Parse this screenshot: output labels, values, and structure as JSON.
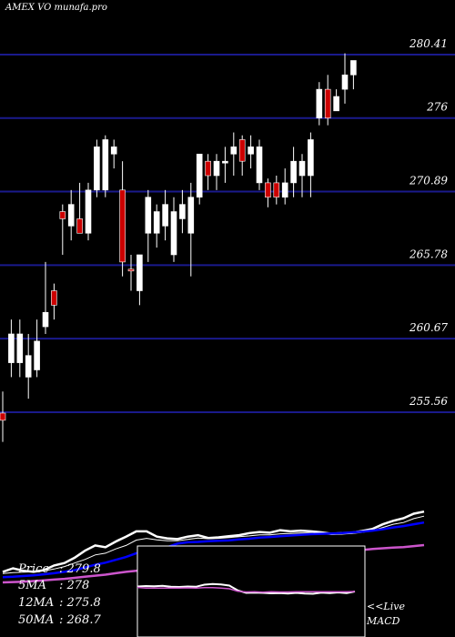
{
  "header": {
    "exchange": "AMEX",
    "symbol": "VO",
    "site": "munafa.pro"
  },
  "chart_data": [
    {
      "type": "candlestick",
      "title": "",
      "y_ticks": [
        280.41,
        276,
        270.89,
        265.78,
        260.67,
        255.56
      ],
      "ylim": [
        253.5,
        282.3
      ],
      "grid": "horizontal",
      "candles": [
        {
          "o": 255.5,
          "h": 257.0,
          "l": 253.5,
          "c": 255.0,
          "color": "red"
        },
        {
          "o": 259.0,
          "h": 262.0,
          "l": 258.0,
          "c": 261.0,
          "color": "white"
        },
        {
          "o": 261.0,
          "h": 262.0,
          "l": 258.0,
          "c": 259.0,
          "color": "white"
        },
        {
          "o": 259.5,
          "h": 261.0,
          "l": 256.5,
          "c": 258.0,
          "color": "white"
        },
        {
          "o": 258.5,
          "h": 262.0,
          "l": 258.0,
          "c": 260.5,
          "color": "white"
        },
        {
          "o": 261.5,
          "h": 266.0,
          "l": 261.0,
          "c": 262.5,
          "color": "white"
        },
        {
          "o": 264.0,
          "h": 264.5,
          "l": 262.0,
          "c": 263.0,
          "color": "red"
        },
        {
          "o": 269.0,
          "h": 270.0,
          "l": 266.5,
          "c": 269.5,
          "color": "red"
        },
        {
          "o": 268.5,
          "h": 271.0,
          "l": 267.5,
          "c": 270.0,
          "color": "white"
        },
        {
          "o": 269.0,
          "h": 271.5,
          "l": 268.0,
          "c": 268.0,
          "color": "red"
        },
        {
          "o": 268.0,
          "h": 271.5,
          "l": 267.5,
          "c": 271.0,
          "color": "white"
        },
        {
          "o": 271.0,
          "h": 274.5,
          "l": 270.5,
          "c": 274.0,
          "color": "white"
        },
        {
          "o": 274.5,
          "h": 274.8,
          "l": 270.5,
          "c": 271.0,
          "color": "white"
        },
        {
          "o": 274.0,
          "h": 274.5,
          "l": 272.5,
          "c": 273.5,
          "color": "white"
        },
        {
          "o": 271.0,
          "h": 273.0,
          "l": 265.0,
          "c": 266.0,
          "color": "red"
        },
        {
          "o": 265.5,
          "h": 266.5,
          "l": 264.0,
          "c": 265.5,
          "color": "red"
        },
        {
          "o": 264.0,
          "h": 266.5,
          "l": 263.0,
          "c": 266.5,
          "color": "white"
        },
        {
          "o": 268.0,
          "h": 271.0,
          "l": 266.0,
          "c": 270.5,
          "color": "white"
        },
        {
          "o": 268.0,
          "h": 270.0,
          "l": 267.0,
          "c": 269.5,
          "color": "white"
        },
        {
          "o": 270.0,
          "h": 271.0,
          "l": 267.5,
          "c": 268.5,
          "color": "white"
        },
        {
          "o": 266.5,
          "h": 270.5,
          "l": 266.0,
          "c": 269.5,
          "color": "white"
        },
        {
          "o": 269.0,
          "h": 271.0,
          "l": 268.0,
          "c": 270.0,
          "color": "white"
        },
        {
          "o": 268.0,
          "h": 271.5,
          "l": 265.0,
          "c": 270.5,
          "color": "white"
        },
        {
          "o": 270.5,
          "h": 273.5,
          "l": 270.0,
          "c": 273.5,
          "color": "white"
        },
        {
          "o": 273.0,
          "h": 273.5,
          "l": 271.0,
          "c": 272.0,
          "color": "red"
        },
        {
          "o": 272.0,
          "h": 273.5,
          "l": 271.0,
          "c": 273.0,
          "color": "white"
        },
        {
          "o": 273.0,
          "h": 274.0,
          "l": 271.5,
          "c": 273.0,
          "color": "white"
        },
        {
          "o": 273.5,
          "h": 275.0,
          "l": 272.0,
          "c": 274.0,
          "color": "white"
        },
        {
          "o": 274.5,
          "h": 274.8,
          "l": 272.0,
          "c": 273.0,
          "color": "red"
        },
        {
          "o": 273.5,
          "h": 274.8,
          "l": 272.5,
          "c": 274.0,
          "color": "white"
        },
        {
          "o": 274.0,
          "h": 274.5,
          "l": 271.0,
          "c": 271.5,
          "color": "white"
        },
        {
          "o": 271.5,
          "h": 271.8,
          "l": 269.8,
          "c": 270.5,
          "color": "red"
        },
        {
          "o": 270.5,
          "h": 272.0,
          "l": 270.0,
          "c": 271.5,
          "color": "red"
        },
        {
          "o": 270.5,
          "h": 272.5,
          "l": 270.0,
          "c": 271.5,
          "color": "white"
        },
        {
          "o": 273.0,
          "h": 274.0,
          "l": 270.5,
          "c": 271.5,
          "color": "white"
        },
        {
          "o": 272.0,
          "h": 273.5,
          "l": 270.5,
          "c": 273.0,
          "color": "white"
        },
        {
          "o": 272.0,
          "h": 275.0,
          "l": 270.5,
          "c": 274.5,
          "color": "white"
        },
        {
          "o": 278.0,
          "h": 278.5,
          "l": 275.5,
          "c": 276.0,
          "color": "white"
        },
        {
          "o": 278.0,
          "h": 279.0,
          "l": 275.5,
          "c": 276.0,
          "color": "red"
        },
        {
          "o": 276.5,
          "h": 278.0,
          "l": 276.5,
          "c": 277.5,
          "color": "white"
        },
        {
          "o": 278.0,
          "h": 280.5,
          "l": 277.0,
          "c": 279.0,
          "color": "white"
        },
        {
          "o": 279.0,
          "h": 280.0,
          "l": 278.0,
          "c": 280.0,
          "color": "white"
        }
      ],
      "colors": {
        "up": "#ffffff",
        "down": "#cc0000",
        "grid": "#1a1a8c"
      }
    },
    {
      "type": "line",
      "title": "",
      "ylim": [
        252,
        283
      ],
      "series": [
        {
          "color": "#ffffff",
          "values": [
            255.0,
            256.0,
            255.3,
            255.0,
            255.5,
            256.8,
            257.5,
            259.0,
            261.0,
            262.5,
            262.0,
            263.6,
            265.0,
            266.5,
            266.5,
            265.0,
            264.5,
            264.3,
            265.0,
            265.4,
            264.6,
            264.8,
            265.1,
            265.4,
            266.0,
            266.3,
            266.1,
            266.8,
            266.5,
            266.7,
            266.5,
            266.2,
            265.8,
            266.0,
            266.1,
            266.6,
            267.2,
            268.5,
            269.5,
            270.2,
            271.5,
            272.1
          ]
        },
        {
          "color": "#ffffff",
          "values": [
            254.5,
            254.8,
            254.9,
            255.0,
            255.3,
            255.8,
            256.5,
            257.5,
            258.5,
            259.8,
            260.3,
            261.5,
            262.5,
            264.0,
            264.5,
            264.1,
            263.8,
            263.8,
            264.2,
            264.6,
            264.4,
            264.5,
            264.7,
            265.0,
            265.2,
            265.5,
            265.5,
            265.8,
            265.9,
            266.0,
            266.0,
            265.8,
            265.6,
            265.7,
            265.9,
            266.2,
            266.7,
            267.6,
            268.5,
            269.0,
            270.1,
            270.8
          ]
        },
        {
          "color": "#0000ff",
          "values": [
            253.5,
            253.6,
            253.8,
            254.0,
            254.3,
            254.6,
            255.0,
            255.5,
            256.2,
            257.0,
            257.6,
            258.4,
            259.2,
            260.3,
            260.8,
            261.2,
            262.0,
            263.0,
            263.4,
            263.5,
            263.7,
            263.8,
            263.9,
            264.2,
            264.4,
            264.7,
            264.9,
            265.1,
            265.3,
            265.5,
            265.7,
            265.8,
            265.9,
            266.0,
            266.2,
            266.4,
            266.7,
            267.1,
            267.6,
            268.0,
            268.5,
            269.0
          ]
        },
        {
          "color": "#cc55cc",
          "values": [
            252.0,
            252.1,
            252.2,
            252.4,
            252.6,
            252.8,
            253.0,
            253.3,
            253.6,
            253.9,
            254.2,
            254.6,
            255.0,
            255.3,
            255.6,
            256.0,
            256.3,
            256.6,
            256.9,
            257.2,
            257.5,
            257.7,
            258.0,
            258.3,
            258.6,
            258.9,
            259.1,
            259.3,
            259.6,
            259.9,
            260.1,
            260.4,
            260.6,
            260.8,
            261.0,
            261.2,
            261.5,
            261.7,
            261.9,
            262.0,
            262.3,
            262.6
          ]
        }
      ]
    },
    {
      "type": "line",
      "title": "",
      "ylim": [
        -1,
        1
      ],
      "series": [
        {
          "color": "#ffffff",
          "values": [
            0.22,
            0.24,
            0.23,
            0.25,
            0.21,
            0.2,
            0.22,
            0.21,
            0.3,
            0.33,
            0.31,
            0.26,
            0.05,
            -0.06,
            -0.05,
            -0.06,
            -0.08,
            -0.07,
            -0.09,
            -0.06,
            -0.09,
            -0.1,
            -0.05,
            -0.07,
            -0.04,
            -0.07,
            0.0
          ]
        },
        {
          "color": "#cc55cc",
          "values": [
            0.18,
            0.15,
            0.15,
            0.15,
            0.15,
            0.15,
            0.16,
            0.15,
            0.17,
            0.17,
            0.15,
            0.12,
            0.01,
            -0.02,
            -0.01,
            -0.03,
            -0.01,
            -0.02,
            -0.02,
            -0.01,
            -0.01,
            -0.01,
            -0.01,
            -0.01,
            -0.01,
            -0.01,
            0.0
          ]
        }
      ]
    }
  ],
  "ma": {
    "price_label": "Price",
    "price": ": 279.8",
    "ma5_label": "5MA",
    "ma5": ": 278",
    "ma12_label": "12MA",
    "ma12": ": 275.8",
    "ma50_label": "50MA",
    "ma50": ": 268.7"
  },
  "footer": {
    "live": "<<Live",
    "indicator": "MACD"
  }
}
